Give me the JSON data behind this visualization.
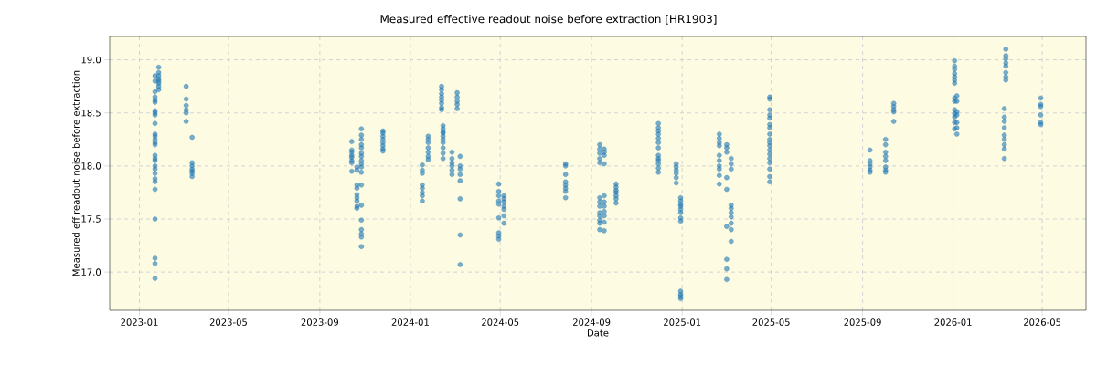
{
  "chart_data": {
    "type": "scatter",
    "title": "Measured effective readout noise before extraction [HR1903]",
    "xlabel": "Date",
    "ylabel": "Measured eff readout noise before extraction",
    "xlim": [
      "2022-11-22",
      "2026-06-29"
    ],
    "ylim": [
      16.64,
      19.22
    ],
    "xticks": [
      "2023-01",
      "2023-05",
      "2023-09",
      "2024-01",
      "2024-05",
      "2024-09",
      "2025-01",
      "2025-05",
      "2025-09",
      "2026-01",
      "2026-05"
    ],
    "yticks": [
      {
        "value": 17,
        "label": "17.0"
      },
      {
        "value": 17.5,
        "label": "17.5"
      },
      {
        "value": 18,
        "label": "18.0"
      },
      {
        "value": 18.5,
        "label": "18.5"
      },
      {
        "value": 19,
        "label": "19.0"
      }
    ],
    "grid": true,
    "marker": "circle",
    "series": [
      {
        "color": "#1f77b4",
        "x": [
          "2023-01-27",
          "2023-01-27",
          "2023-01-27",
          "2023-01-27",
          "2023-01-27",
          "2023-01-27",
          "2023-01-27",
          "2023-01-27",
          "2023-01-22",
          "2023-01-22",
          "2023-01-22",
          "2023-01-22",
          "2023-01-22",
          "2023-01-22",
          "2023-01-22",
          "2023-01-22",
          "2023-01-22",
          "2023-01-22",
          "2023-01-22",
          "2023-01-22",
          "2023-01-22",
          "2023-01-22",
          "2023-01-22",
          "2023-01-22",
          "2023-01-22",
          "2023-01-22",
          "2023-01-22",
          "2023-01-22",
          "2023-01-22",
          "2023-01-22",
          "2023-01-22",
          "2023-01-22",
          "2023-01-22",
          "2023-01-22",
          "2023-01-22",
          "2023-01-22",
          "2023-03-05",
          "2023-03-05",
          "2023-03-05",
          "2023-03-05",
          "2023-03-05",
          "2023-03-05",
          "2023-03-13",
          "2023-03-13",
          "2023-03-13",
          "2023-03-13",
          "2023-03-13",
          "2023-03-13",
          "2023-03-13",
          "2023-10-14",
          "2023-10-14",
          "2023-10-14",
          "2023-10-14",
          "2023-10-14",
          "2023-10-14",
          "2023-10-14",
          "2023-10-14",
          "2023-10-21",
          "2023-10-21",
          "2023-10-21",
          "2023-10-21",
          "2023-10-21",
          "2023-10-21",
          "2023-10-21",
          "2023-10-21",
          "2023-10-21",
          "2023-10-27",
          "2023-10-27",
          "2023-10-27",
          "2023-10-27",
          "2023-10-27",
          "2023-10-27",
          "2023-10-27",
          "2023-10-27",
          "2023-10-27",
          "2023-10-27",
          "2023-10-27",
          "2023-10-27",
          "2023-10-27",
          "2023-10-27",
          "2023-10-27",
          "2023-10-27",
          "2023-10-27",
          "2023-10-27",
          "2023-11-25",
          "2023-11-25",
          "2023-11-25",
          "2023-11-25",
          "2023-11-25",
          "2023-11-25",
          "2023-11-25",
          "2023-11-25",
          "2024-01-17",
          "2024-01-17",
          "2024-01-17",
          "2024-01-17",
          "2024-01-17",
          "2024-01-17",
          "2024-01-17",
          "2024-01-17",
          "2024-01-25",
          "2024-01-25",
          "2024-01-25",
          "2024-01-25",
          "2024-01-25",
          "2024-01-25",
          "2024-01-25",
          "2024-02-12",
          "2024-02-12",
          "2024-02-12",
          "2024-02-12",
          "2024-02-12",
          "2024-02-12",
          "2024-02-12",
          "2024-02-12",
          "2024-02-14",
          "2024-02-14",
          "2024-02-14",
          "2024-02-14",
          "2024-02-14",
          "2024-02-14",
          "2024-02-14",
          "2024-02-14",
          "2024-02-14",
          "2024-02-14",
          "2024-02-26",
          "2024-02-26",
          "2024-02-26",
          "2024-02-26",
          "2024-02-26",
          "2024-02-26",
          "2024-03-04",
          "2024-03-04",
          "2024-03-04",
          "2024-03-04",
          "2024-03-04",
          "2024-03-08",
          "2024-03-08",
          "2024-03-08",
          "2024-03-08",
          "2024-03-08",
          "2024-03-08",
          "2024-03-08",
          "2024-03-08",
          "2024-04-29",
          "2024-04-29",
          "2024-04-29",
          "2024-04-29",
          "2024-04-29",
          "2024-04-29",
          "2024-04-29",
          "2024-04-29",
          "2024-04-29",
          "2024-05-06",
          "2024-05-06",
          "2024-05-06",
          "2024-05-06",
          "2024-05-06",
          "2024-05-06",
          "2024-05-06",
          "2024-07-28",
          "2024-07-28",
          "2024-07-28",
          "2024-07-28",
          "2024-07-28",
          "2024-07-28",
          "2024-07-28",
          "2024-07-28",
          "2024-09-12",
          "2024-09-12",
          "2024-09-12",
          "2024-09-12",
          "2024-09-12",
          "2024-09-12",
          "2024-09-12",
          "2024-09-12",
          "2024-09-12",
          "2024-09-12",
          "2024-09-12",
          "2024-09-12",
          "2024-09-12",
          "2024-09-18",
          "2024-09-18",
          "2024-09-18",
          "2024-09-18",
          "2024-09-18",
          "2024-09-18",
          "2024-09-18",
          "2024-09-18",
          "2024-09-18",
          "2024-09-18",
          "2024-09-18",
          "2024-10-04",
          "2024-10-04",
          "2024-10-04",
          "2024-10-04",
          "2024-10-04",
          "2024-10-04",
          "2024-10-04",
          "2024-11-30",
          "2024-11-30",
          "2024-11-30",
          "2024-11-30",
          "2024-11-30",
          "2024-11-30",
          "2024-11-30",
          "2024-11-30",
          "2024-11-30",
          "2024-11-30",
          "2024-11-30",
          "2024-11-30",
          "2024-11-30",
          "2024-12-24",
          "2024-12-24",
          "2024-12-24",
          "2024-12-24",
          "2024-12-24",
          "2024-12-24",
          "2024-12-30",
          "2024-12-30",
          "2024-12-30",
          "2024-12-30",
          "2024-12-30",
          "2024-12-30",
          "2024-12-30",
          "2024-12-30",
          "2024-12-30",
          "2024-12-30",
          "2024-12-30",
          "2024-12-30",
          "2025-02-20",
          "2025-02-20",
          "2025-02-20",
          "2025-02-20",
          "2025-02-20",
          "2025-02-20",
          "2025-02-20",
          "2025-02-20",
          "2025-02-20",
          "2025-02-20",
          "2025-03-02",
          "2025-03-02",
          "2025-03-02",
          "2025-03-02",
          "2025-03-02",
          "2025-03-02",
          "2025-03-02",
          "2025-03-02",
          "2025-03-02",
          "2025-03-08",
          "2025-03-08",
          "2025-03-08",
          "2025-03-08",
          "2025-03-08",
          "2025-03-08",
          "2025-03-08",
          "2025-03-08",
          "2025-03-08",
          "2025-03-08",
          "2025-04-29",
          "2025-04-29",
          "2025-04-29",
          "2025-04-29",
          "2025-04-29",
          "2025-04-29",
          "2025-04-29",
          "2025-04-29",
          "2025-04-29",
          "2025-04-29",
          "2025-04-29",
          "2025-04-29",
          "2025-04-29",
          "2025-04-29",
          "2025-04-29",
          "2025-04-29",
          "2025-04-29",
          "2025-04-29",
          "2025-09-11",
          "2025-09-11",
          "2025-09-11",
          "2025-09-11",
          "2025-09-11",
          "2025-09-11",
          "2025-10-02",
          "2025-10-02",
          "2025-10-02",
          "2025-10-02",
          "2025-10-02",
          "2025-10-02",
          "2025-10-02",
          "2025-10-02",
          "2025-10-13",
          "2025-10-13",
          "2025-10-13",
          "2025-10-13",
          "2025-10-13",
          "2026-01-03",
          "2026-01-03",
          "2026-01-03",
          "2026-01-03",
          "2026-01-03",
          "2026-01-03",
          "2026-01-03",
          "2026-01-03",
          "2026-01-03",
          "2026-01-03",
          "2026-01-03",
          "2026-01-03",
          "2026-01-03",
          "2026-01-03",
          "2026-01-06",
          "2026-01-06",
          "2026-01-06",
          "2026-01-06",
          "2026-01-06",
          "2026-01-06",
          "2026-01-06",
          "2026-03-11",
          "2026-03-11",
          "2026-03-11",
          "2026-03-11",
          "2026-03-11",
          "2026-03-11",
          "2026-03-11",
          "2026-03-11",
          "2026-03-11",
          "2026-03-13",
          "2026-03-13",
          "2026-03-13",
          "2026-03-13",
          "2026-03-13",
          "2026-03-13",
          "2026-03-13",
          "2026-03-13",
          "2026-04-29",
          "2026-04-29",
          "2026-04-29",
          "2026-04-29",
          "2026-04-29",
          "2026-04-29"
        ],
        "values": [
          18.93,
          18.88,
          18.85,
          18.82,
          18.8,
          18.78,
          18.75,
          18.72,
          18.85,
          18.8,
          18.7,
          18.65,
          18.62,
          18.6,
          18.52,
          18.5,
          18.48,
          18.4,
          18.3,
          18.28,
          18.25,
          18.22,
          18.2,
          18.1,
          18.07,
          18.05,
          18.0,
          17.97,
          17.93,
          17.88,
          17.85,
          17.78,
          17.5,
          17.13,
          17.08,
          16.94,
          18.75,
          18.63,
          18.57,
          18.53,
          18.5,
          18.42,
          18.27,
          18.03,
          18.0,
          17.97,
          17.95,
          17.93,
          17.9,
          18.23,
          18.15,
          18.13,
          18.1,
          18.08,
          18.05,
          18.03,
          17.95,
          17.99,
          17.96,
          17.82,
          17.79,
          17.73,
          17.7,
          17.67,
          17.62,
          17.6,
          18.35,
          18.29,
          18.25,
          18.2,
          18.17,
          18.12,
          18.09,
          18.05,
          18.02,
          17.99,
          17.94,
          17.82,
          17.63,
          17.49,
          17.4,
          17.36,
          17.33,
          17.24,
          18.33,
          18.31,
          18.28,
          18.25,
          18.22,
          18.19,
          18.16,
          18.14,
          18.01,
          17.96,
          17.93,
          17.82,
          17.79,
          17.75,
          17.72,
          17.67,
          18.28,
          18.25,
          18.22,
          18.17,
          18.13,
          18.09,
          18.06,
          18.75,
          18.72,
          18.68,
          18.65,
          18.62,
          18.59,
          18.55,
          18.53,
          18.38,
          18.35,
          18.32,
          18.31,
          18.28,
          18.25,
          18.22,
          18.17,
          18.12,
          18.07,
          18.13,
          18.07,
          18.03,
          18.0,
          17.96,
          17.92,
          18.69,
          18.65,
          18.61,
          18.58,
          18.54,
          18.09,
          18.0,
          17.97,
          17.92,
          17.86,
          17.69,
          17.35,
          17.07,
          17.83,
          17.76,
          17.72,
          17.67,
          17.64,
          17.51,
          17.37,
          17.34,
          17.31,
          17.72,
          17.69,
          17.66,
          17.62,
          17.59,
          17.53,
          17.46,
          18.02,
          18.0,
          17.92,
          17.85,
          17.82,
          17.79,
          17.76,
          17.7,
          18.2,
          18.16,
          18.12,
          18.07,
          18.03,
          17.7,
          17.66,
          17.62,
          17.56,
          17.53,
          17.49,
          17.46,
          17.4,
          18.16,
          18.13,
          18.1,
          18.02,
          17.72,
          17.66,
          17.62,
          17.57,
          17.53,
          17.47,
          17.39,
          17.83,
          17.8,
          17.77,
          17.75,
          17.72,
          17.69,
          17.65,
          18.4,
          18.36,
          18.33,
          18.3,
          18.26,
          18.22,
          18.17,
          18.1,
          18.07,
          18.05,
          18.02,
          17.98,
          17.94,
          18.02,
          17.99,
          17.96,
          17.93,
          17.89,
          17.84,
          17.7,
          17.67,
          17.64,
          17.62,
          17.59,
          17.56,
          17.51,
          17.48,
          16.82,
          16.79,
          16.77,
          16.75,
          18.3,
          18.26,
          18.22,
          18.19,
          18.1,
          18.05,
          18.0,
          17.97,
          17.91,
          17.83,
          18.2,
          18.17,
          18.13,
          17.89,
          17.78,
          17.43,
          17.12,
          17.03,
          16.93,
          18.07,
          18.02,
          17.97,
          17.63,
          17.6,
          17.56,
          17.52,
          17.46,
          17.4,
          17.29,
          18.65,
          18.63,
          18.53,
          18.48,
          18.45,
          18.39,
          18.36,
          18.3,
          18.25,
          18.22,
          18.19,
          18.15,
          18.11,
          18.07,
          18.03,
          17.97,
          17.9,
          17.85,
          18.15,
          18.05,
          18.02,
          17.99,
          17.96,
          17.94,
          18.25,
          18.2,
          18.13,
          18.09,
          18.05,
          17.99,
          17.96,
          17.94,
          18.59,
          18.56,
          18.53,
          18.51,
          18.42,
          18.99,
          18.94,
          18.91,
          18.87,
          18.84,
          18.81,
          18.78,
          18.64,
          18.61,
          18.53,
          18.49,
          18.46,
          18.41,
          18.35,
          18.66,
          18.61,
          18.51,
          18.48,
          18.41,
          18.36,
          18.3,
          18.54,
          18.46,
          18.42,
          18.36,
          18.29,
          18.25,
          18.2,
          18.16,
          18.07,
          19.1,
          19.04,
          19.01,
          18.97,
          18.94,
          18.88,
          18.84,
          18.81,
          18.64,
          18.58,
          18.56,
          18.48,
          18.41,
          18.39
        ]
      }
    ]
  }
}
